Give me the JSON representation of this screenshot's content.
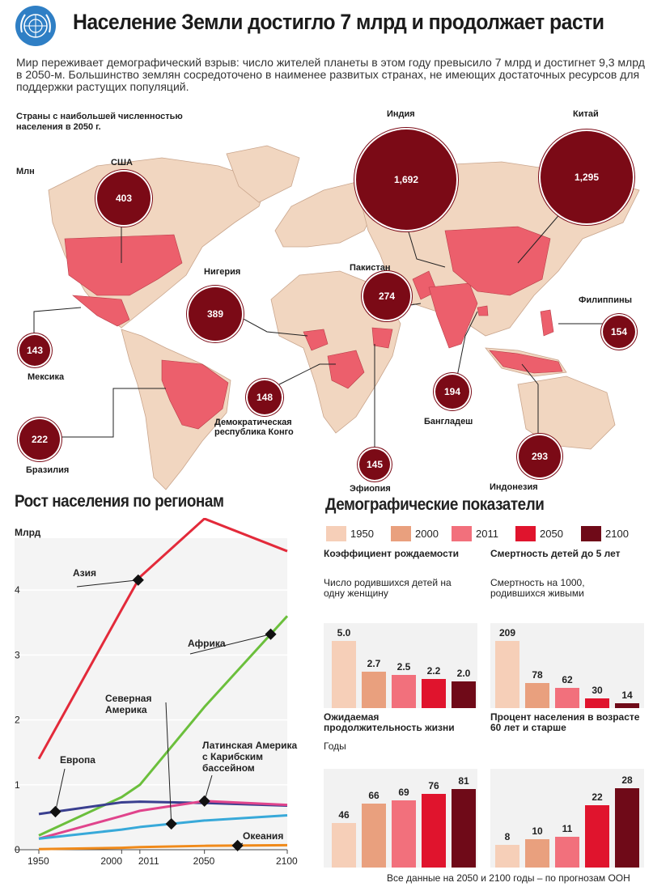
{
  "title": "Население Земли достигло 7 млрд и продолжает расти",
  "intro": "Мир переживает демографический взрыв: число жителей планеты в этом году превысило 7 млрд и достигнет 9,3 млрд в 2050-м. Большинство землян сосредоточено в наименее развитых странах, не имеющих достаточных ресурсов для поддержки растущих популяций.",
  "map": {
    "heading": "Страны с наибольшей численностью населения в 2050 г.",
    "unit": "Млн",
    "countries": [
      {
        "name": "США",
        "value": "403"
      },
      {
        "name": "Индия",
        "value": "1,692"
      },
      {
        "name": "Китай",
        "value": "1,295"
      },
      {
        "name": "Нигерия",
        "value": "389"
      },
      {
        "name": "Пакистан",
        "value": "274"
      },
      {
        "name": "Филиппины",
        "value": "154"
      },
      {
        "name": "Мексика",
        "value": "143"
      },
      {
        "name": "Демократическая республика Конго",
        "value": "148"
      },
      {
        "name": "Бангладеш",
        "value": "194"
      },
      {
        "name": "Бразилия",
        "value": "222"
      },
      {
        "name": "Эфиопия",
        "value": "145"
      },
      {
        "name": "Индонезия",
        "value": "293"
      }
    ]
  },
  "colors": {
    "map_highlight": "#ec5f6c",
    "land": "#f1d6c0",
    "ocean": "#ffffff",
    "bubble": "#7b0a16"
  },
  "regions_title": "Рост населения по регионам",
  "demo_title": "Демографические показатели",
  "footnote": "Все данные на 2050 и 2100 годы – по прогнозам ООН",
  "chart_data": [
    {
      "type": "line",
      "title": "Рост населения по регионам",
      "ylabel": "Млрд",
      "ylim": [
        0,
        4.8
      ],
      "x_ticks": [
        "1950",
        "2000",
        "2011",
        "2050",
        "2100"
      ],
      "y_ticks": [
        "0",
        "1",
        "2",
        "3",
        "4"
      ],
      "series": [
        {
          "name": "Азия",
          "color": "#e32a3a",
          "x": [
            1950,
            2000,
            2011,
            2050,
            2100
          ],
          "values": [
            1.4,
            3.7,
            4.2,
            5.1,
            4.6
          ]
        },
        {
          "name": "Африка",
          "color": "#6bbf3c",
          "x": [
            1950,
            2000,
            2011,
            2050,
            2100
          ],
          "values": [
            0.22,
            0.81,
            1.0,
            2.2,
            3.6
          ]
        },
        {
          "name": "Европа",
          "color": "#3a3f8f",
          "x": [
            1950,
            2000,
            2011,
            2050,
            2100
          ],
          "values": [
            0.55,
            0.73,
            0.74,
            0.72,
            0.68
          ]
        },
        {
          "name": "Латинская Америка с Карибским бассейном",
          "color": "#e0448c",
          "x": [
            1950,
            2000,
            2011,
            2050,
            2100
          ],
          "values": [
            0.17,
            0.52,
            0.6,
            0.75,
            0.69
          ]
        },
        {
          "name": "Северная Америка",
          "color": "#38a9d9",
          "x": [
            1950,
            2000,
            2011,
            2050,
            2100
          ],
          "values": [
            0.17,
            0.31,
            0.35,
            0.45,
            0.53
          ]
        },
        {
          "name": "Океания",
          "color": "#f08a1a",
          "x": [
            1950,
            2000,
            2011,
            2050,
            2100
          ],
          "values": [
            0.01,
            0.03,
            0.04,
            0.06,
            0.07
          ]
        }
      ]
    },
    {
      "type": "bar",
      "title": "Коэффициент рождаемости",
      "subtitle": "Число родившихся детей на одну женщину",
      "categories": [
        "1950",
        "2000",
        "2011",
        "2050",
        "2100"
      ],
      "values": [
        5.0,
        2.7,
        2.5,
        2.2,
        2.0
      ],
      "labels": [
        "5.0",
        "2.7",
        "2.5",
        "2.2",
        "2.0"
      ],
      "ylim": [
        0,
        5.5
      ]
    },
    {
      "type": "bar",
      "title": "Смертность детей до 5 лет",
      "subtitle": "Смертность на 1000, родившихся живыми",
      "categories": [
        "1950",
        "2000",
        "2011",
        "2050",
        "2100"
      ],
      "values": [
        209,
        78,
        62,
        30,
        14
      ],
      "labels": [
        "209",
        "78",
        "62",
        "30",
        "14"
      ],
      "ylim": [
        0,
        230
      ]
    },
    {
      "type": "bar",
      "title": "Ожидаемая продолжительность жизни",
      "subtitle": "Годы",
      "categories": [
        "1950",
        "2000",
        "2011",
        "2050",
        "2100"
      ],
      "values": [
        46,
        66,
        69,
        76,
        81
      ],
      "labels": [
        "46",
        "66",
        "69",
        "76",
        "81"
      ],
      "ylim": [
        0,
        90
      ]
    },
    {
      "type": "bar",
      "title": "Процент населения в возрасте 60 лет и старше",
      "subtitle": "",
      "categories": [
        "1950",
        "2000",
        "2011",
        "2050",
        "2100"
      ],
      "values": [
        8,
        10,
        11,
        22,
        28
      ],
      "labels": [
        "8",
        "10",
        "11",
        "22",
        "28"
      ],
      "ylim": [
        0,
        31
      ]
    }
  ],
  "bar_colors": [
    "#f6cfb8",
    "#e9a07e",
    "#f2707c",
    "#e0142d",
    "#6f0a18"
  ]
}
